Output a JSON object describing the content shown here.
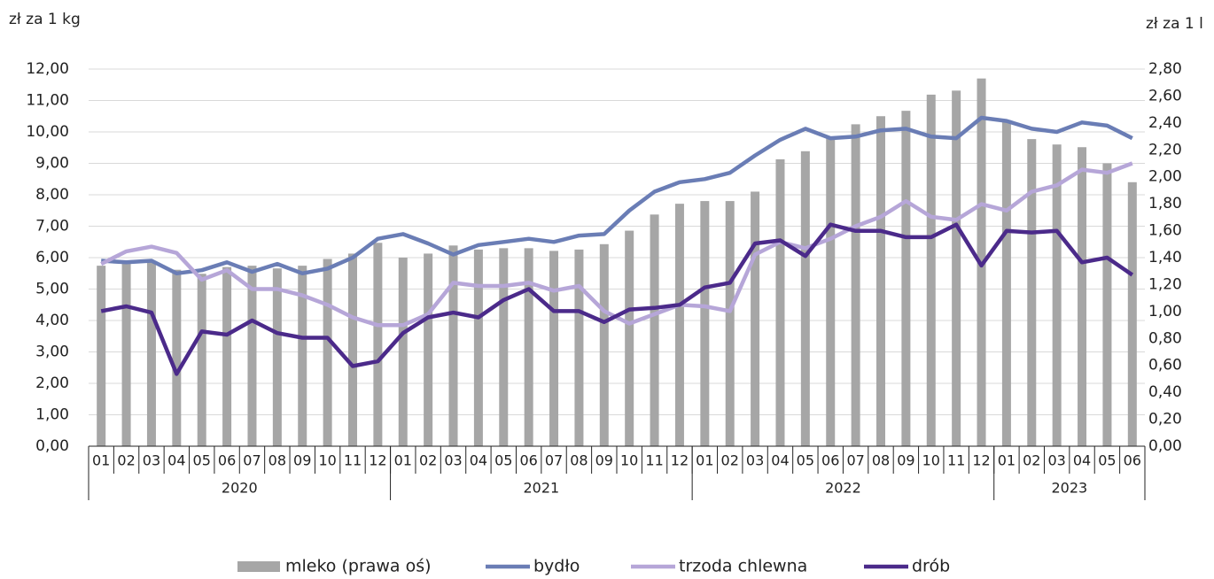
{
  "chart_data": {
    "type": "combo",
    "y_label": "zł za 1 kg",
    "y2_label": "zł za 1 l",
    "category_groups": [
      {
        "label": "2020",
        "categories": [
          "01",
          "02",
          "03",
          "04",
          "05",
          "06",
          "07",
          "08",
          "09",
          "10",
          "11",
          "12"
        ]
      },
      {
        "label": "2021",
        "categories": [
          "01",
          "02",
          "03",
          "04",
          "05",
          "06",
          "07",
          "08",
          "09",
          "10",
          "11",
          "12"
        ]
      },
      {
        "label": "2022",
        "categories": [
          "01",
          "02",
          "03",
          "04",
          "05",
          "06",
          "07",
          "08",
          "09",
          "10",
          "11",
          "12"
        ]
      },
      {
        "label": "2023",
        "categories": [
          "01",
          "02",
          "03",
          "04",
          "05",
          "06"
        ]
      }
    ],
    "ylim": [
      0,
      12
    ],
    "yticks": [
      {
        "value": 0,
        "label": "0,00"
      },
      {
        "value": 1,
        "label": "1,00"
      },
      {
        "value": 2,
        "label": "2,00"
      },
      {
        "value": 3,
        "label": "3,00"
      },
      {
        "value": 4,
        "label": "4,00"
      },
      {
        "value": 5,
        "label": "5,00"
      },
      {
        "value": 6,
        "label": "6,00"
      },
      {
        "value": 7,
        "label": "7,00"
      },
      {
        "value": 8,
        "label": "8,00"
      },
      {
        "value": 9,
        "label": "9,00"
      },
      {
        "value": 10,
        "label": "10,00"
      },
      {
        "value": 11,
        "label": "11,00"
      },
      {
        "value": 12,
        "label": "12,00"
      }
    ],
    "y2lim": [
      0,
      2.8
    ],
    "y2ticks": [
      {
        "value": 0,
        "label": "0,00"
      },
      {
        "value": 0.2,
        "label": "0,20"
      },
      {
        "value": 0.4,
        "label": "0,40"
      },
      {
        "value": 0.6,
        "label": "0,60"
      },
      {
        "value": 0.8,
        "label": "0,80"
      },
      {
        "value": 1,
        "label": "1,00"
      },
      {
        "value": 1.2,
        "label": "1,20"
      },
      {
        "value": 1.4,
        "label": "1,40"
      },
      {
        "value": 1.6,
        "label": "1,60"
      },
      {
        "value": 1.8,
        "label": "1,80"
      },
      {
        "value": 2,
        "label": "2,00"
      },
      {
        "value": 2.2,
        "label": "2,20"
      },
      {
        "value": 2.4,
        "label": "2,40"
      },
      {
        "value": 2.6,
        "label": "2,60"
      },
      {
        "value": 2.8,
        "label": "2,80"
      }
    ],
    "grid": true,
    "legend": "bottom",
    "series": [
      {
        "name": "mleko (prawa oś)",
        "type": "bar",
        "axis": "y2",
        "color": "#a6a6a6",
        "values": [
          1.34,
          1.37,
          1.37,
          1.31,
          1.28,
          1.33,
          1.34,
          1.32,
          1.34,
          1.39,
          1.43,
          1.51,
          1.4,
          1.43,
          1.49,
          1.46,
          1.47,
          1.47,
          1.45,
          1.46,
          1.5,
          1.6,
          1.72,
          1.8,
          1.82,
          1.82,
          1.89,
          2.13,
          2.19,
          2.3,
          2.39,
          2.45,
          2.49,
          2.61,
          2.64,
          2.73,
          2.42,
          2.28,
          2.24,
          2.22,
          2.1,
          1.96
        ]
      },
      {
        "name": "bydło",
        "type": "line",
        "color": "#6a7db5",
        "values": [
          5.9,
          5.85,
          5.9,
          5.5,
          5.6,
          5.85,
          5.55,
          5.8,
          5.5,
          5.65,
          6.0,
          6.6,
          6.75,
          6.45,
          6.1,
          6.4,
          6.5,
          6.6,
          6.5,
          6.7,
          6.75,
          7.5,
          8.1,
          8.4,
          8.5,
          8.7,
          9.25,
          9.75,
          10.1,
          9.8,
          9.85,
          10.05,
          10.1,
          9.85,
          9.8,
          10.45,
          10.35,
          10.1,
          10.0,
          10.3,
          10.2,
          9.8
        ]
      },
      {
        "name": "trzoda chlewna",
        "type": "line",
        "color": "#b6a6d8",
        "values": [
          5.8,
          6.2,
          6.35,
          6.15,
          5.3,
          5.6,
          5.0,
          5.0,
          4.8,
          4.5,
          4.1,
          3.85,
          3.85,
          4.2,
          5.2,
          5.1,
          5.1,
          5.2,
          4.95,
          5.1,
          4.3,
          3.9,
          4.2,
          4.5,
          4.45,
          4.3,
          6.1,
          6.5,
          6.3,
          6.6,
          7.0,
          7.3,
          7.8,
          7.3,
          7.2,
          7.7,
          7.5,
          8.1,
          8.3,
          8.8,
          8.7,
          9.0
        ]
      },
      {
        "name": "drób",
        "type": "line",
        "color": "#4b2a8a",
        "values": [
          4.3,
          4.45,
          4.25,
          2.3,
          3.65,
          3.55,
          4.0,
          3.6,
          3.45,
          3.45,
          2.55,
          2.7,
          3.6,
          4.1,
          4.25,
          4.1,
          4.65,
          5.0,
          4.3,
          4.3,
          3.95,
          4.35,
          4.4,
          4.5,
          5.05,
          5.2,
          6.45,
          6.55,
          6.05,
          7.05,
          6.85,
          6.85,
          6.65,
          6.65,
          7.05,
          5.75,
          6.85,
          6.8,
          6.85,
          5.85,
          6.0,
          5.45
        ]
      }
    ]
  }
}
